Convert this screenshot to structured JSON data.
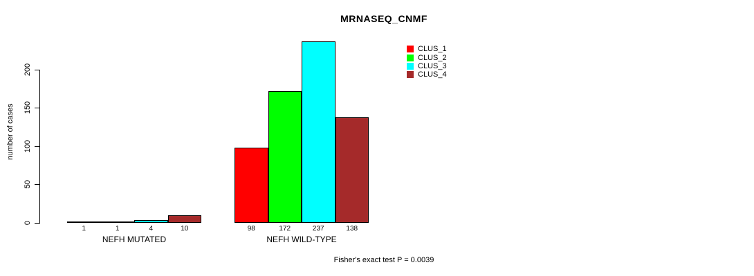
{
  "chart_data": {
    "type": "bar",
    "title": "MRNASEQ_CNMF",
    "ylabel": "number of cases",
    "xlabel": "",
    "yticks": [
      0,
      50,
      100,
      150,
      200
    ],
    "ylim": [
      0,
      240
    ],
    "grid": false,
    "legend_position": "top-right",
    "categories": [
      "NEFH MUTATED",
      "NEFH WILD-TYPE"
    ],
    "series": [
      {
        "name": "CLUS_1",
        "color": "#ff0000",
        "values": [
          1,
          98
        ]
      },
      {
        "name": "CLUS_2",
        "color": "#00ff00",
        "values": [
          1,
          172
        ]
      },
      {
        "name": "CLUS_3",
        "color": "#00ffff",
        "values": [
          4,
          237
        ]
      },
      {
        "name": "CLUS_4",
        "color": "#a52a2a",
        "values": [
          10,
          138
        ]
      }
    ],
    "bar_value_labels": [
      [
        "1",
        "1",
        "4",
        "10"
      ],
      [
        "98",
        "172",
        "237",
        "138"
      ]
    ],
    "annotation": "Fisher's exact test P = 0.0039"
  }
}
